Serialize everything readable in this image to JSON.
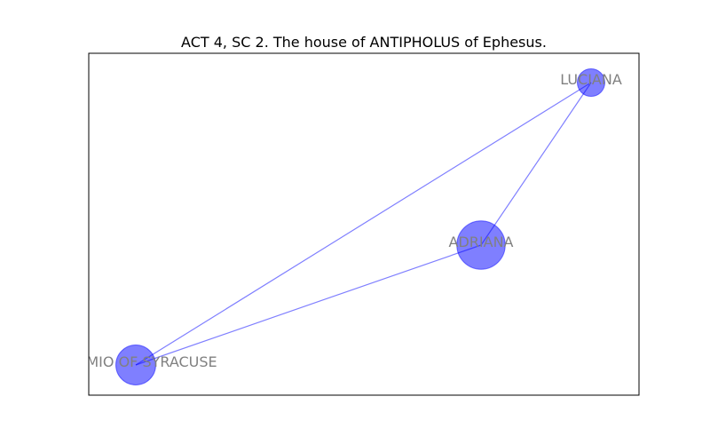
{
  "title": "ACT 4, SC 2. The house of ANTIPHOLUS of Ephesus.",
  "colors": {
    "node": "#0000ff",
    "edge": "#0000ff",
    "label": "#808080",
    "frame": "#000000"
  },
  "nodes": [
    {
      "id": "luciana",
      "label": "LUCIANA",
      "weight": 1
    },
    {
      "id": "adriana",
      "label": "ADRIANA",
      "weight": 5
    },
    {
      "id": "dromio",
      "label": "DROMIO OF SYRACUSE",
      "weight": 3
    }
  ],
  "edges": [
    {
      "source": "dromio",
      "target": "luciana"
    },
    {
      "source": "dromio",
      "target": "adriana"
    },
    {
      "source": "adriana",
      "target": "luciana"
    }
  ]
}
